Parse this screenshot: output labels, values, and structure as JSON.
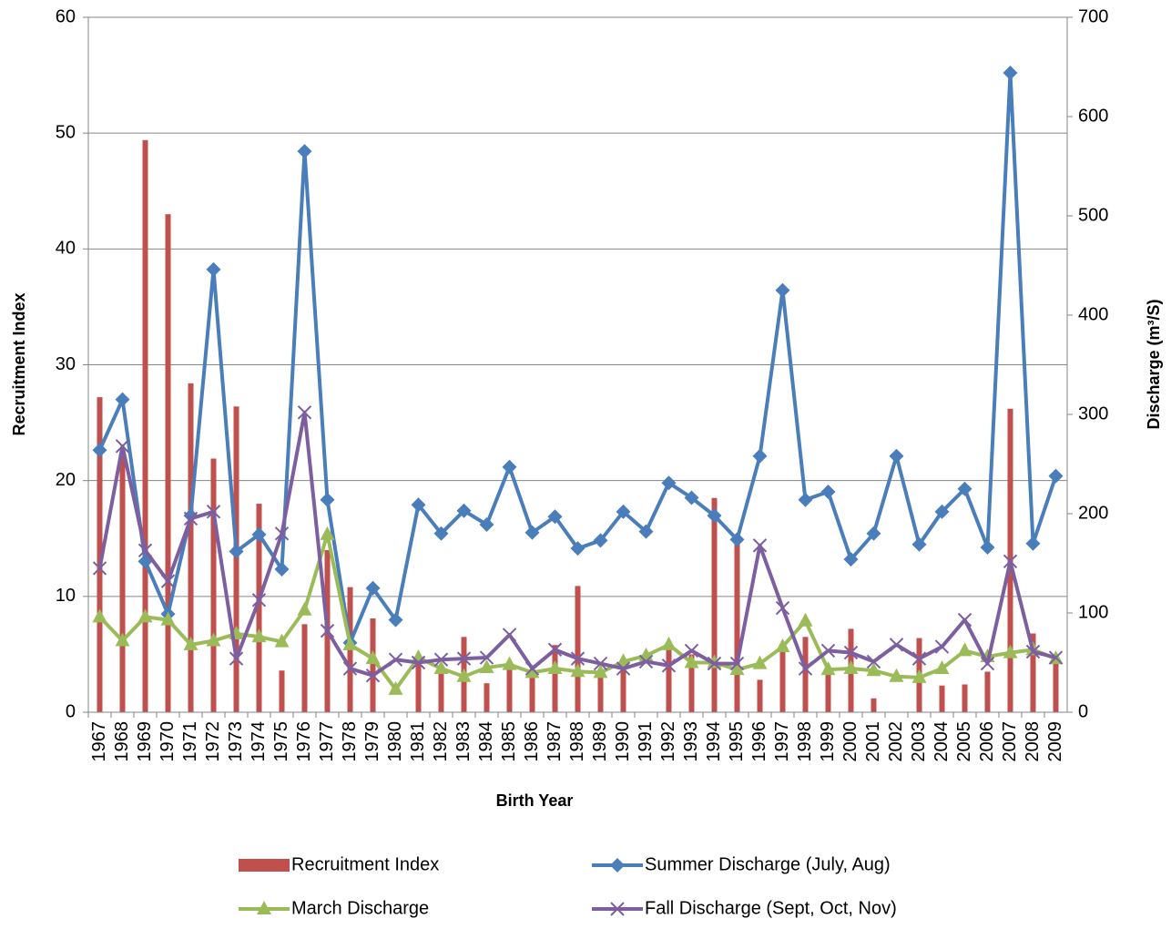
{
  "chart_data": {
    "type": "combo",
    "x_label": "Birth Year",
    "y_label": "Recruitment Index",
    "y2_label": "Discharge (m³/S)",
    "categories": [
      "1967",
      "1968",
      "1969",
      "1970",
      "1971",
      "1972",
      "1973",
      "1974",
      "1975",
      "1976",
      "1977",
      "1978",
      "1979",
      "1980",
      "1981",
      "1982",
      "1983",
      "1984",
      "1985",
      "1986",
      "1987",
      "1988",
      "1989",
      "1990",
      "1991",
      "1992",
      "1993",
      "1994",
      "1995",
      "1996",
      "1997",
      "1998",
      "1999",
      "2000",
      "2001",
      "2002",
      "2003",
      "2004",
      "2005",
      "2006",
      "2007",
      "2008",
      "2009"
    ],
    "ylim": [
      0,
      60
    ],
    "yticks": [
      0,
      10,
      20,
      30,
      40,
      50,
      60
    ],
    "y2lim": [
      0,
      700
    ],
    "y2ticks": [
      0,
      100,
      200,
      300,
      400,
      500,
      600,
      700
    ],
    "grid": true,
    "legend": "bottom",
    "series": [
      {
        "name": "Recruitment Index",
        "type": "bar",
        "color": "#c0504d",
        "values": [
          27.2,
          22.5,
          49.4,
          43.0,
          28.4,
          21.9,
          26.4,
          18.0,
          3.6,
          7.6,
          14.0,
          10.8,
          8.1,
          0,
          4.8,
          3.9,
          6.5,
          2.5,
          4.0,
          3.0,
          5.8,
          10.9,
          3.0,
          4.5,
          0,
          5.5,
          5.0,
          18.5,
          15.0,
          2.8,
          5.5,
          6.5,
          3.5,
          7.2,
          1.2,
          0,
          6.4,
          2.3,
          2.4,
          3.5,
          26.2,
          6.8,
          4.2
        ]
      },
      {
        "name": "Summer Discharge (July, Aug)",
        "type": "line",
        "marker": "diamond",
        "axis": "y2",
        "color": "#4a7ebb",
        "values": [
          264,
          315,
          152,
          99,
          198,
          446,
          162,
          179,
          144,
          565,
          214,
          70,
          125,
          93,
          209,
          180,
          203,
          189,
          247,
          181,
          197,
          165,
          173,
          202,
          182,
          231,
          216,
          198,
          174,
          258,
          425,
          214,
          222,
          154,
          180,
          258,
          169,
          202,
          225,
          166,
          644,
          170,
          238
        ]
      },
      {
        "name": "March Discharge",
        "type": "line",
        "marker": "triangle",
        "axis": "y2",
        "color": "#9bbb59",
        "values": [
          96,
          72,
          96,
          93,
          68,
          72,
          79,
          76,
          71,
          103,
          179,
          68,
          54,
          23,
          55,
          44,
          36,
          45,
          48,
          40,
          44,
          41,
          40,
          51,
          57,
          68,
          50,
          50,
          43,
          49,
          66,
          92,
          43,
          44,
          42,
          36,
          35,
          44,
          62,
          56,
          60,
          63,
          54
        ]
      },
      {
        "name": "Fall Discharge (Sept, Oct, Nov)",
        "type": "line",
        "marker": "x",
        "axis": "y2",
        "color": "#7d5fa0",
        "values": [
          145,
          268,
          163,
          132,
          195,
          202,
          54,
          113,
          180,
          302,
          82,
          44,
          37,
          53,
          50,
          53,
          54,
          55,
          78,
          44,
          63,
          54,
          49,
          44,
          51,
          47,
          62,
          49,
          49,
          168,
          105,
          44,
          62,
          60,
          51,
          68,
          54,
          66,
          93,
          49,
          152,
          61,
          55
        ]
      }
    ]
  }
}
